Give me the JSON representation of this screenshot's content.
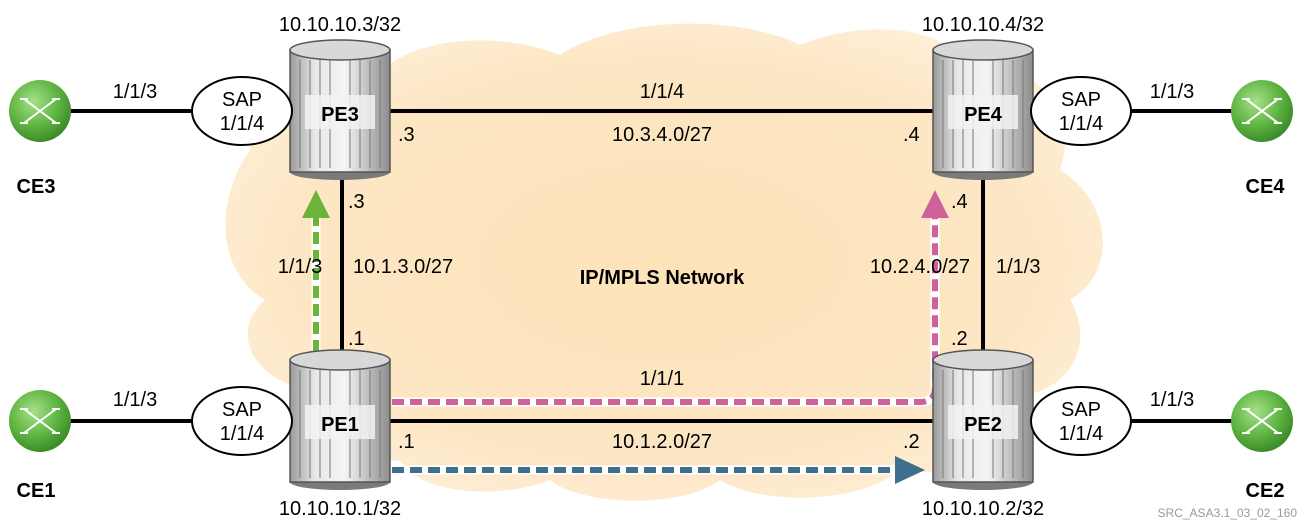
{
  "network_label": "IP/MPLS Network",
  "routers": {
    "pe1": {
      "name": "PE1",
      "system_ip": "10.10.10.1/32"
    },
    "pe2": {
      "name": "PE2",
      "system_ip": "10.10.10.2/32"
    },
    "pe3": {
      "name": "PE3",
      "system_ip": "10.10.10.3/32"
    },
    "pe4": {
      "name": "PE4",
      "system_ip": "10.10.10.4/32"
    }
  },
  "ces": {
    "ce1": {
      "name": "CE1",
      "port": "1/1/3"
    },
    "ce2": {
      "name": "CE2",
      "port": "1/1/3"
    },
    "ce3": {
      "name": "CE3",
      "port": "1/1/3"
    },
    "ce4": {
      "name": "CE4",
      "port": "1/1/3"
    }
  },
  "saps": {
    "pe1": {
      "line1": "SAP",
      "line2": "1/1/4"
    },
    "pe2": {
      "line1": "SAP",
      "line2": "1/1/4"
    },
    "pe3": {
      "line1": "SAP",
      "line2": "1/1/4"
    },
    "pe4": {
      "line1": "SAP",
      "line2": "1/1/4"
    }
  },
  "links": {
    "pe3_pe4": {
      "port": "1/1/4",
      "subnet": "10.3.4.0/27",
      "pe3_addr": ".3",
      "pe4_addr": ".4"
    },
    "pe1_pe2": {
      "port": "1/1/1",
      "subnet": "10.1.2.0/27",
      "pe1_addr": ".1",
      "pe2_addr": ".2"
    },
    "pe1_pe3": {
      "port": "1/1/3",
      "subnet": "10.1.3.0/27",
      "pe1_addr": ".1",
      "pe3_addr": ".3"
    },
    "pe2_pe4": {
      "port": "1/1/3",
      "subnet": "10.2.4.0/27",
      "pe2_addr": ".2",
      "pe4_addr": ".4"
    }
  },
  "colors": {
    "green_arrow": "#6ab43a",
    "pink_arrow": "#d0609a",
    "blue_arrow": "#3e6f8c",
    "cloud": "#fbe3bd",
    "ce_green": "#5fb542"
  },
  "watermark": "SRC_ASA3.1_03_02_160"
}
